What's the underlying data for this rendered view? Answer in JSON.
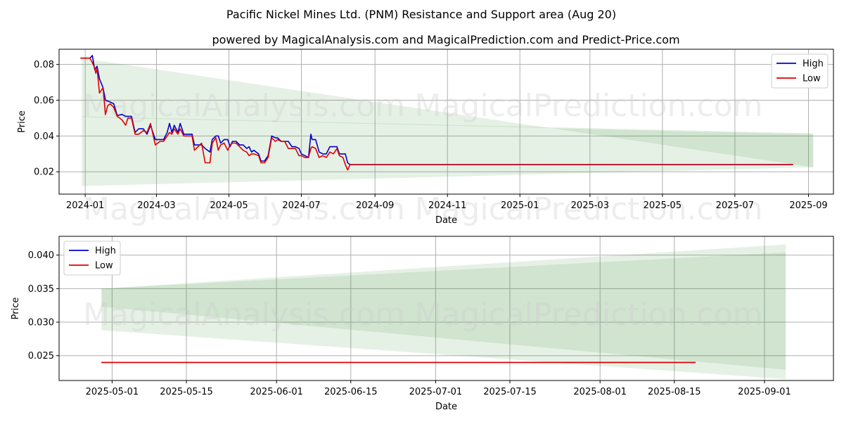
{
  "title": "Pacific Nickel Mines Ltd. (PNM) Resistance and Support area (Aug 20)",
  "subtitle": "powered by MagicalAnalysis.com and MagicalPrediction.com and Predict-Price.com",
  "watermarks": [
    "MagicalAnalysis.com",
    "MagicalPrediction.com"
  ],
  "colors": {
    "high": "#0000cc",
    "low": "#dd0000",
    "band": "#2e8b2e",
    "grid": "#b0b0b0"
  },
  "chart_data": [
    {
      "type": "line",
      "xlabel": "Date",
      "ylabel": "Price",
      "x_range": [
        "2023-12-10",
        "2025-09-22"
      ],
      "ylim": [
        0.0075,
        0.0885
      ],
      "x_ticks": [
        {
          "date": "2024-01-01",
          "label": "2024-01"
        },
        {
          "date": "2024-03-01",
          "label": "2024-03"
        },
        {
          "date": "2024-05-01",
          "label": "2024-05"
        },
        {
          "date": "2024-07-01",
          "label": "2024-07"
        },
        {
          "date": "2024-09-01",
          "label": "2024-09"
        },
        {
          "date": "2024-11-01",
          "label": "2024-11"
        },
        {
          "date": "2025-01-01",
          "label": "2025-01"
        },
        {
          "date": "2025-03-01",
          "label": "2025-03"
        },
        {
          "date": "2025-05-01",
          "label": "2025-05"
        },
        {
          "date": "2025-07-01",
          "label": "2025-07"
        },
        {
          "date": "2025-09-01",
          "label": "2025-09"
        }
      ],
      "y_ticks": [
        {
          "value": 0.02,
          "label": "0.02"
        },
        {
          "value": 0.04,
          "label": "0.04"
        },
        {
          "value": 0.06,
          "label": "0.06"
        },
        {
          "value": 0.08,
          "label": "0.08"
        }
      ],
      "grid": true,
      "legend_position": "top-right",
      "bands": [
        {
          "x": [
            "2023-12-29",
            "2025-09-05"
          ],
          "top": [
            0.0835,
            0.0225
          ],
          "bottom": [
            0.0505,
            0.041
          ]
        },
        {
          "x": [
            "2023-12-29",
            "2025-09-05"
          ],
          "top": [
            0.051,
            0.0415
          ],
          "bottom": [
            0.012,
            0.0225
          ]
        }
      ],
      "series": [
        {
          "name": "High",
          "points": [
            [
              "2023-12-28",
              0.0835
            ],
            [
              "2024-01-05",
              0.0835
            ],
            [
              "2024-01-07",
              0.085
            ],
            [
              "2024-01-09",
              0.077
            ],
            [
              "2024-01-11",
              0.079
            ],
            [
              "2024-01-13",
              0.072
            ],
            [
              "2024-01-16",
              0.067
            ],
            [
              "2024-01-18",
              0.06
            ],
            [
              "2024-01-22",
              0.059
            ],
            [
              "2024-01-25",
              0.058
            ],
            [
              "2024-01-28",
              0.0515
            ],
            [
              "2024-02-01",
              0.052
            ],
            [
              "2024-02-04",
              0.051
            ],
            [
              "2024-02-06",
              0.051
            ],
            [
              "2024-02-09",
              0.051
            ],
            [
              "2024-02-12",
              0.042
            ],
            [
              "2024-02-15",
              0.044
            ],
            [
              "2024-02-19",
              0.044
            ],
            [
              "2024-02-22",
              0.041
            ],
            [
              "2024-02-25",
              0.046
            ],
            [
              "2024-02-29",
              0.038
            ],
            [
              "2024-03-04",
              0.038
            ],
            [
              "2024-03-07",
              0.038
            ],
            [
              "2024-03-10",
              0.042
            ],
            [
              "2024-03-12",
              0.047
            ],
            [
              "2024-03-14",
              0.042
            ],
            [
              "2024-03-16",
              0.046
            ],
            [
              "2024-03-19",
              0.042
            ],
            [
              "2024-03-21",
              0.047
            ],
            [
              "2024-03-24",
              0.041
            ],
            [
              "2024-03-28",
              0.041
            ],
            [
              "2024-03-31",
              0.041
            ],
            [
              "2024-04-02",
              0.035
            ],
            [
              "2024-04-05",
              0.035
            ],
            [
              "2024-04-08",
              0.035
            ],
            [
              "2024-04-11",
              0.033
            ],
            [
              "2024-04-15",
              0.031
            ],
            [
              "2024-04-17",
              0.038
            ],
            [
              "2024-04-20",
              0.04
            ],
            [
              "2024-04-22",
              0.04
            ],
            [
              "2024-04-24",
              0.036
            ],
            [
              "2024-04-27",
              0.038
            ],
            [
              "2024-04-30",
              0.038
            ],
            [
              "2024-05-02",
              0.034
            ],
            [
              "2024-05-04",
              0.037
            ],
            [
              "2024-05-07",
              0.037
            ],
            [
              "2024-05-10",
              0.035
            ],
            [
              "2024-05-13",
              0.035
            ],
            [
              "2024-05-16",
              0.033
            ],
            [
              "2024-05-18",
              0.034
            ],
            [
              "2024-05-20",
              0.031
            ],
            [
              "2024-05-22",
              0.032
            ],
            [
              "2024-05-26",
              0.03
            ],
            [
              "2024-05-28",
              0.026
            ],
            [
              "2024-05-31",
              0.026
            ],
            [
              "2024-06-03",
              0.029
            ],
            [
              "2024-06-06",
              0.04
            ],
            [
              "2024-06-09",
              0.039
            ],
            [
              "2024-06-11",
              0.039
            ],
            [
              "2024-06-14",
              0.037
            ],
            [
              "2024-06-17",
              0.037
            ],
            [
              "2024-06-20",
              0.037
            ],
            [
              "2024-06-23",
              0.034
            ],
            [
              "2024-06-26",
              0.034
            ],
            [
              "2024-06-29",
              0.033
            ],
            [
              "2024-07-01",
              0.03
            ],
            [
              "2024-07-04",
              0.029
            ],
            [
              "2024-07-07",
              0.028
            ],
            [
              "2024-07-09",
              0.041
            ],
            [
              "2024-07-10",
              0.038
            ],
            [
              "2024-07-13",
              0.038
            ],
            [
              "2024-07-16",
              0.031
            ],
            [
              "2024-07-19",
              0.03
            ],
            [
              "2024-07-22",
              0.03
            ],
            [
              "2024-07-25",
              0.034
            ],
            [
              "2024-07-28",
              0.034
            ],
            [
              "2024-07-31",
              0.034
            ],
            [
              "2024-08-02",
              0.03
            ],
            [
              "2024-08-05",
              0.03
            ],
            [
              "2024-08-07",
              0.03
            ],
            [
              "2024-08-09",
              0.025
            ],
            [
              "2024-08-11",
              0.024
            ],
            [
              "2025-08-19",
              0.024
            ]
          ]
        },
        {
          "name": "Low",
          "points": [
            [
              "2023-12-28",
              0.0835
            ],
            [
              "2024-01-05",
              0.0835
            ],
            [
              "2024-01-07",
              0.081
            ],
            [
              "2024-01-09",
              0.078
            ],
            [
              "2024-01-10",
              0.075
            ],
            [
              "2024-01-11",
              0.078
            ],
            [
              "2024-01-13",
              0.064
            ],
            [
              "2024-01-16",
              0.067
            ],
            [
              "2024-01-18",
              0.052
            ],
            [
              "2024-01-20",
              0.057
            ],
            [
              "2024-01-22",
              0.058
            ],
            [
              "2024-01-25",
              0.056
            ],
            [
              "2024-01-28",
              0.051
            ],
            [
              "2024-02-01",
              0.049
            ],
            [
              "2024-02-04",
              0.046
            ],
            [
              "2024-02-06",
              0.05
            ],
            [
              "2024-02-09",
              0.05
            ],
            [
              "2024-02-12",
              0.041
            ],
            [
              "2024-02-15",
              0.041
            ],
            [
              "2024-02-19",
              0.043
            ],
            [
              "2024-02-22",
              0.042
            ],
            [
              "2024-02-25",
              0.047
            ],
            [
              "2024-02-29",
              0.035
            ],
            [
              "2024-03-04",
              0.037
            ],
            [
              "2024-03-07",
              0.037
            ],
            [
              "2024-03-10",
              0.04
            ],
            [
              "2024-03-12",
              0.042
            ],
            [
              "2024-03-14",
              0.041
            ],
            [
              "2024-03-16",
              0.044
            ],
            [
              "2024-03-19",
              0.041
            ],
            [
              "2024-03-21",
              0.044
            ],
            [
              "2024-03-24",
              0.04
            ],
            [
              "2024-03-28",
              0.04
            ],
            [
              "2024-03-31",
              0.04
            ],
            [
              "2024-04-02",
              0.032
            ],
            [
              "2024-04-05",
              0.034
            ],
            [
              "2024-04-08",
              0.036
            ],
            [
              "2024-04-11",
              0.025
            ],
            [
              "2024-04-15",
              0.025
            ],
            [
              "2024-04-17",
              0.036
            ],
            [
              "2024-04-20",
              0.039
            ],
            [
              "2024-04-22",
              0.032
            ],
            [
              "2024-04-24",
              0.035
            ],
            [
              "2024-04-27",
              0.036
            ],
            [
              "2024-04-30",
              0.032
            ],
            [
              "2024-05-02",
              0.035
            ],
            [
              "2024-05-04",
              0.036
            ],
            [
              "2024-05-07",
              0.036
            ],
            [
              "2024-05-10",
              0.034
            ],
            [
              "2024-05-13",
              0.032
            ],
            [
              "2024-05-16",
              0.031
            ],
            [
              "2024-05-18",
              0.029
            ],
            [
              "2024-05-20",
              0.03
            ],
            [
              "2024-05-22",
              0.03
            ],
            [
              "2024-05-26",
              0.029
            ],
            [
              "2024-05-28",
              0.025
            ],
            [
              "2024-05-31",
              0.025
            ],
            [
              "2024-06-03",
              0.028
            ],
            [
              "2024-06-06",
              0.039
            ],
            [
              "2024-06-09",
              0.037
            ],
            [
              "2024-06-11",
              0.038
            ],
            [
              "2024-06-14",
              0.037
            ],
            [
              "2024-06-17",
              0.037
            ],
            [
              "2024-06-20",
              0.033
            ],
            [
              "2024-06-23",
              0.033
            ],
            [
              "2024-06-26",
              0.033
            ],
            [
              "2024-06-29",
              0.029
            ],
            [
              "2024-07-01",
              0.029
            ],
            [
              "2024-07-04",
              0.028
            ],
            [
              "2024-07-07",
              0.028
            ],
            [
              "2024-07-09",
              0.033
            ],
            [
              "2024-07-10",
              0.034
            ],
            [
              "2024-07-13",
              0.033
            ],
            [
              "2024-07-16",
              0.028
            ],
            [
              "2024-07-19",
              0.029
            ],
            [
              "2024-07-22",
              0.028
            ],
            [
              "2024-07-25",
              0.031
            ],
            [
              "2024-07-28",
              0.03
            ],
            [
              "2024-07-31",
              0.033
            ],
            [
              "2024-08-02",
              0.029
            ],
            [
              "2024-08-05",
              0.028
            ],
            [
              "2024-08-07",
              0.024
            ],
            [
              "2024-08-09",
              0.021
            ],
            [
              "2024-08-11",
              0.024
            ],
            [
              "2025-08-19",
              0.024
            ]
          ]
        }
      ]
    },
    {
      "type": "line",
      "xlabel": "Date",
      "ylabel": "Price",
      "x_range": [
        "2025-04-21",
        "2025-09-14"
      ],
      "ylim": [
        0.0213,
        0.0428
      ],
      "x_ticks": [
        {
          "date": "2025-05-01",
          "label": "2025-05-01"
        },
        {
          "date": "2025-05-15",
          "label": "2025-05-15"
        },
        {
          "date": "2025-06-01",
          "label": "2025-06-01"
        },
        {
          "date": "2025-06-15",
          "label": "2025-06-15"
        },
        {
          "date": "2025-07-01",
          "label": "2025-07-01"
        },
        {
          "date": "2025-07-15",
          "label": "2025-07-15"
        },
        {
          "date": "2025-08-01",
          "label": "2025-08-01"
        },
        {
          "date": "2025-08-15",
          "label": "2025-08-15"
        },
        {
          "date": "2025-09-01",
          "label": "2025-09-01"
        }
      ],
      "y_ticks": [
        {
          "value": 0.025,
          "label": "0.025"
        },
        {
          "value": 0.03,
          "label": "0.030"
        },
        {
          "value": 0.035,
          "label": "0.035"
        },
        {
          "value": 0.04,
          "label": "0.040"
        }
      ],
      "grid": true,
      "legend_position": "top-left",
      "bands": [
        {
          "x": [
            "2025-04-29",
            "2025-09-05"
          ],
          "top": [
            0.035,
            0.0416
          ],
          "bottom": [
            0.0288,
            0.0215
          ]
        },
        {
          "x": [
            "2025-04-29",
            "2025-09-05"
          ],
          "top": [
            0.035,
            0.0404
          ],
          "bottom": [
            0.0323,
            0.0229
          ]
        }
      ],
      "series": [
        {
          "name": "High",
          "points": [
            [
              "2025-04-29",
              0.024
            ],
            [
              "2025-08-19",
              0.024
            ]
          ]
        },
        {
          "name": "Low",
          "points": [
            [
              "2025-04-29",
              0.024
            ],
            [
              "2025-08-19",
              0.024
            ]
          ]
        }
      ]
    }
  ]
}
